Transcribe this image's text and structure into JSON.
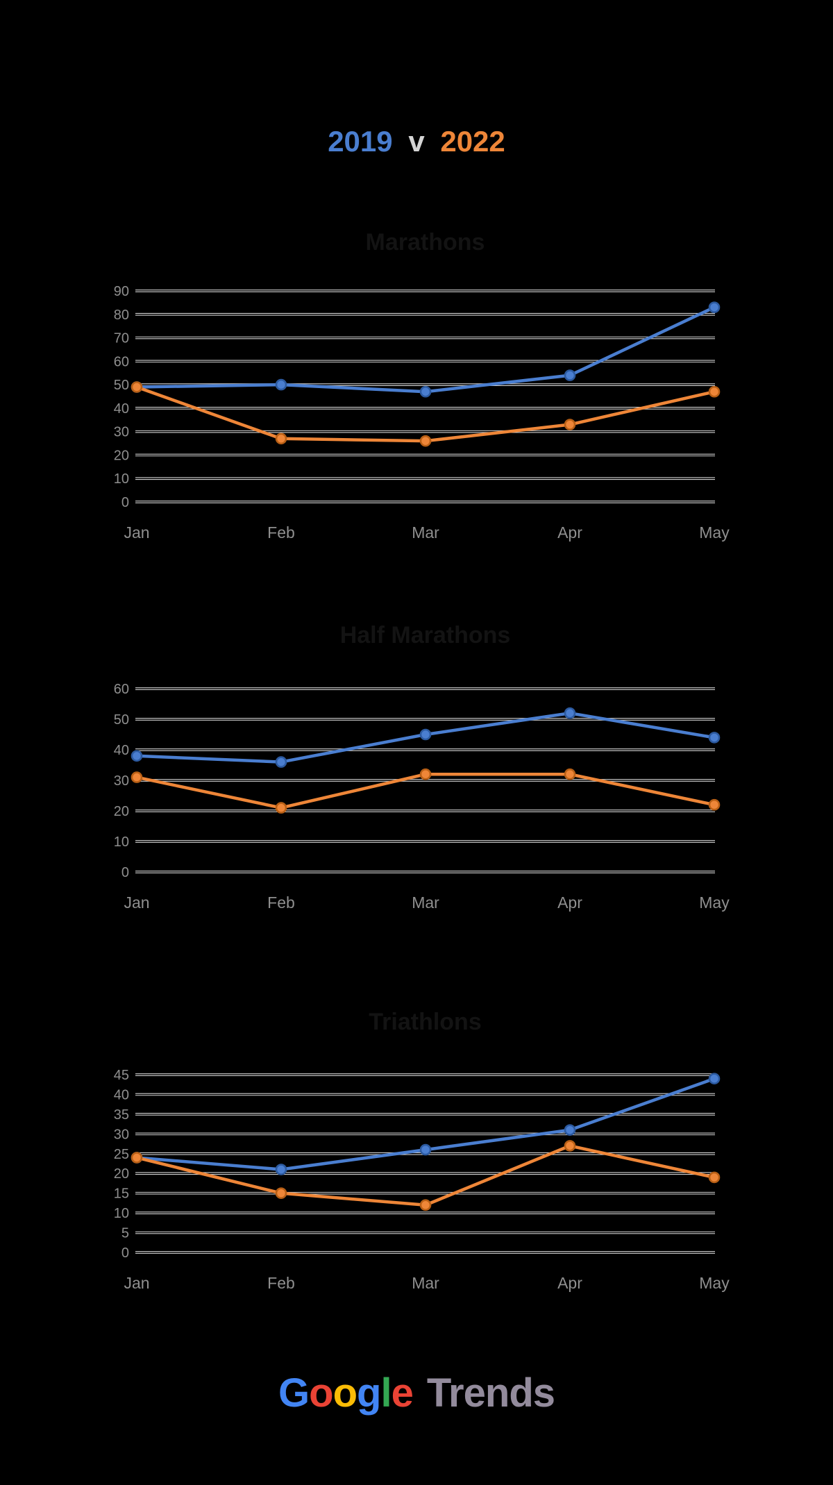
{
  "header": {
    "year_left": "2019",
    "separator": "v",
    "year_right": "2022",
    "year_left_color": "#4a7ed0",
    "separator_color": "#d5d5d5",
    "year_right_color": "#ee8638"
  },
  "chart_data": [
    {
      "type": "line",
      "title": "Marathons",
      "categories": [
        "Jan",
        "Feb",
        "Mar",
        "Apr",
        "May"
      ],
      "series": [
        {
          "name": "2019",
          "color": "#4a7ed0",
          "ring": "#2c5aa0",
          "values": [
            49,
            50,
            47,
            54,
            83
          ]
        },
        {
          "name": "2022",
          "color": "#ee8638",
          "ring": "#b85f15",
          "values": [
            49,
            27,
            26,
            33,
            47
          ]
        }
      ],
      "xlabel": "",
      "ylabel": "",
      "ylim": [
        0,
        90
      ],
      "ytick": 10,
      "grid": true,
      "legend": "none"
    },
    {
      "type": "line",
      "title": "Half Marathons",
      "categories": [
        "Jan",
        "Feb",
        "Mar",
        "Apr",
        "May"
      ],
      "series": [
        {
          "name": "2019",
          "color": "#4a7ed0",
          "ring": "#2c5aa0",
          "values": [
            38,
            36,
            45,
            52,
            44
          ]
        },
        {
          "name": "2022",
          "color": "#ee8638",
          "ring": "#b85f15",
          "values": [
            31,
            21,
            32,
            32,
            22
          ]
        }
      ],
      "xlabel": "",
      "ylabel": "",
      "ylim": [
        0,
        60
      ],
      "ytick": 10,
      "grid": true,
      "legend": "none"
    },
    {
      "type": "line",
      "title": "Triathlons",
      "categories": [
        "Jan",
        "Feb",
        "Mar",
        "Apr",
        "May"
      ],
      "series": [
        {
          "name": "2019",
          "color": "#4a7ed0",
          "ring": "#2c5aa0",
          "values": [
            24,
            21,
            26,
            31,
            44
          ]
        },
        {
          "name": "2022",
          "color": "#ee8638",
          "ring": "#b85f15",
          "values": [
            24,
            15,
            12,
            27,
            19
          ]
        }
      ],
      "xlabel": "",
      "ylabel": "",
      "ylim": [
        0,
        45
      ],
      "ytick": 5,
      "grid": true,
      "legend": "none"
    }
  ],
  "axis_style": {
    "tick_label_color": "#8f8f8f",
    "gridline_color": "#d2d2d2"
  },
  "footer": {
    "google_letters": [
      {
        "ch": "G",
        "color": "#4285F4"
      },
      {
        "ch": "o",
        "color": "#EA4335"
      },
      {
        "ch": "o",
        "color": "#FBBC05"
      },
      {
        "ch": "g",
        "color": "#4285F4"
      },
      {
        "ch": "l",
        "color": "#34A853"
      },
      {
        "ch": "e",
        "color": "#EA4335"
      }
    ],
    "trends": "Trends",
    "trends_color": "#938b9c"
  }
}
